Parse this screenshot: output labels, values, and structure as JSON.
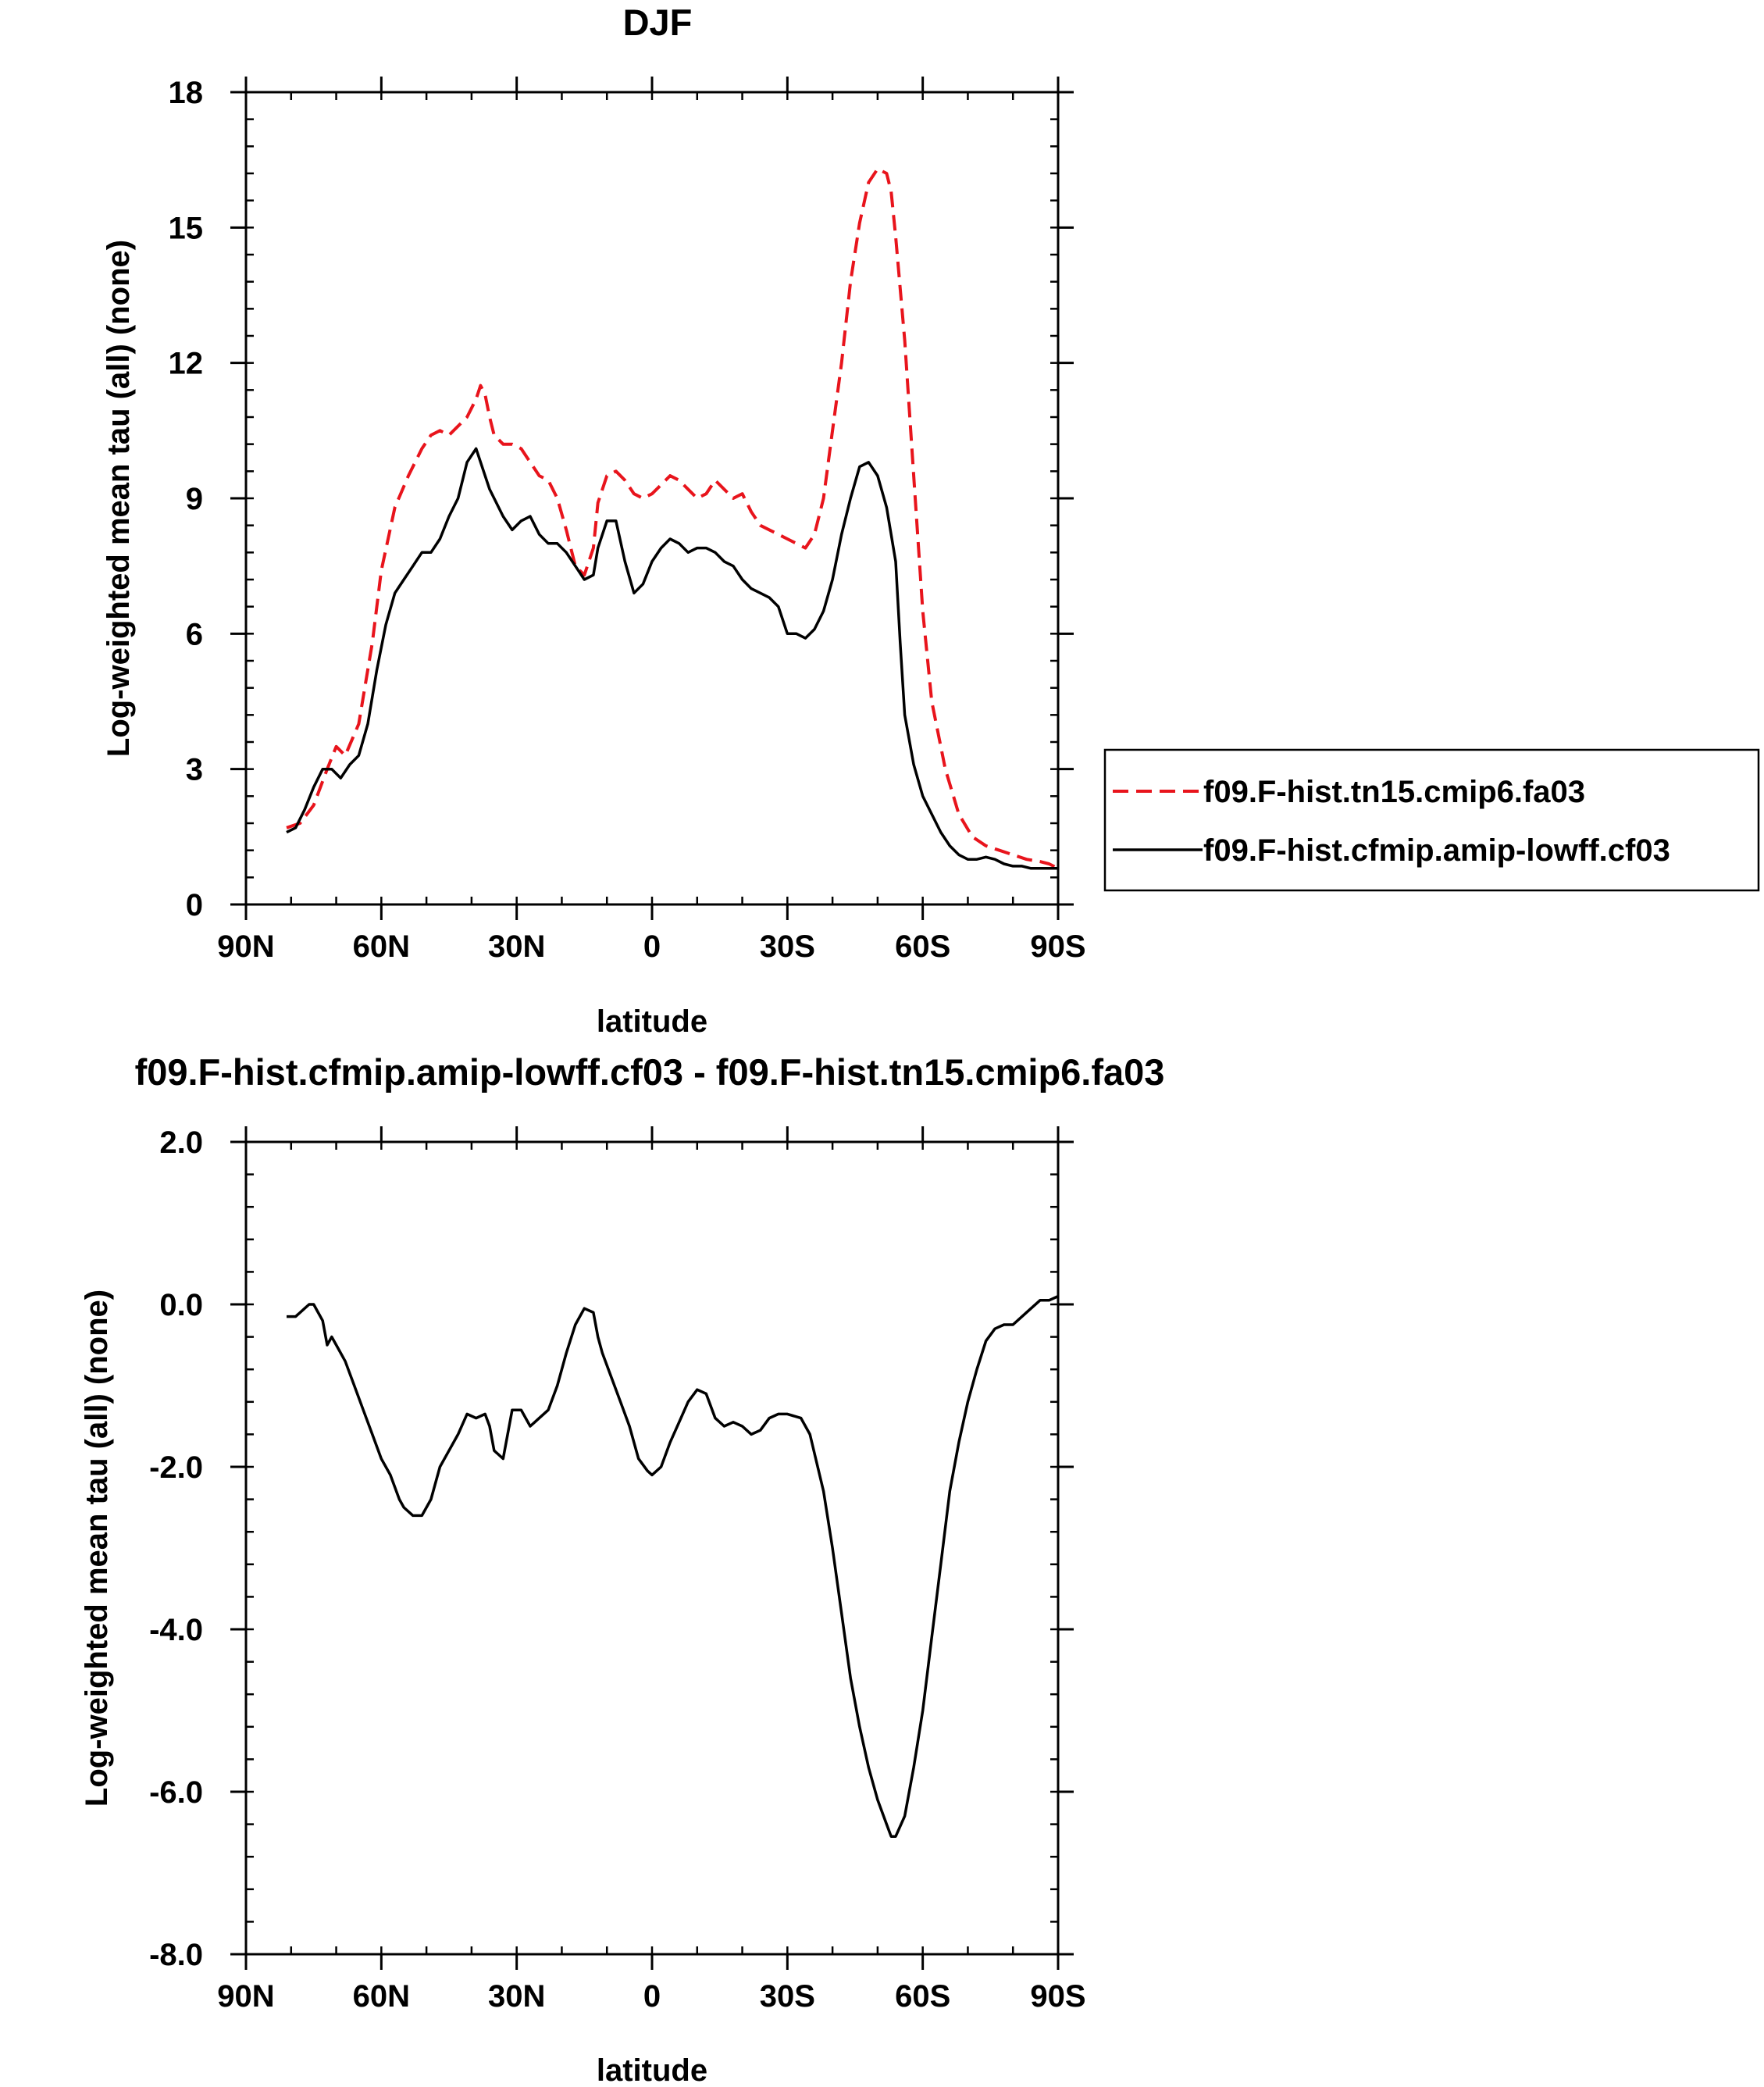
{
  "chart_data": [
    {
      "type": "line",
      "title": "DJF",
      "xlabel": "latitude",
      "ylabel": "Log-weighted mean tau (all) (none)",
      "xlim": [
        90,
        -90
      ],
      "ylim": [
        0,
        18
      ],
      "xticks": [
        90,
        60,
        30,
        0,
        -30,
        -60,
        -90
      ],
      "xtick_labels": [
        "90N",
        "60N",
        "30N",
        "0",
        "30S",
        "60S",
        "90S"
      ],
      "yticks": [
        0,
        3,
        6,
        9,
        12,
        15,
        18
      ],
      "ytick_labels": [
        "0",
        "3",
        "6",
        "9",
        "12",
        "15",
        "18"
      ],
      "grid": false,
      "legend_position": "right",
      "series": [
        {
          "name": "f09.F-hist.tn15.cmip6.fa03",
          "color": "#e8141c",
          "style": "dashed",
          "x": [
            81,
            78,
            75,
            72,
            70,
            68,
            65,
            62,
            60,
            57,
            54,
            51,
            49,
            47,
            45,
            43,
            41,
            39,
            38,
            37,
            36,
            35,
            33,
            31,
            29,
            27,
            25,
            23,
            21,
            19,
            17,
            15,
            13,
            12,
            10,
            8,
            6,
            4,
            2,
            0,
            -2,
            -4,
            -6,
            -8,
            -10,
            -12,
            -14,
            -16,
            -18,
            -20,
            -22,
            -24,
            -26,
            -28,
            -30,
            -32,
            -34,
            -36,
            -38,
            -40,
            -42,
            -44,
            -46,
            -48,
            -50,
            -52,
            -53,
            -54,
            -56,
            -58,
            -60,
            -62,
            -65,
            -68,
            -71,
            -74,
            -77,
            -80,
            -83,
            -86,
            -88,
            -90
          ],
          "values": [
            1.7,
            1.8,
            2.2,
            3.0,
            3.5,
            3.3,
            4.0,
            5.8,
            7.4,
            8.8,
            9.5,
            10.1,
            10.4,
            10.5,
            10.4,
            10.6,
            10.8,
            11.2,
            11.5,
            11.3,
            10.8,
            10.4,
            10.2,
            10.2,
            10.1,
            9.8,
            9.5,
            9.4,
            9.0,
            8.3,
            7.5,
            7.3,
            7.9,
            8.9,
            9.5,
            9.6,
            9.4,
            9.1,
            9.0,
            9.1,
            9.3,
            9.5,
            9.4,
            9.2,
            9.0,
            9.1,
            9.4,
            9.2,
            9.0,
            9.1,
            8.7,
            8.4,
            8.3,
            8.2,
            8.1,
            8.0,
            7.9,
            8.2,
            9.0,
            10.5,
            12.0,
            13.8,
            15.1,
            16.0,
            16.3,
            16.2,
            15.8,
            14.8,
            12.5,
            9.5,
            6.5,
            4.5,
            3.0,
            2.0,
            1.5,
            1.3,
            1.2,
            1.1,
            1.0,
            0.95,
            0.9,
            0.8
          ]
        },
        {
          "name": "f09.F-hist.cfmip.amip-lowff.cf03",
          "color": "#000000",
          "style": "solid",
          "x": [
            81,
            79,
            77,
            75,
            73,
            71,
            69,
            67,
            65,
            63,
            61,
            59,
            57,
            55,
            53,
            51,
            49,
            47,
            45,
            43,
            41,
            39,
            37,
            36,
            35,
            33,
            31,
            29,
            27,
            25,
            23,
            21,
            19,
            17,
            15,
            13,
            12,
            10,
            8,
            6,
            4,
            2,
            0,
            -2,
            -4,
            -6,
            -8,
            -10,
            -12,
            -14,
            -16,
            -18,
            -20,
            -22,
            -24,
            -26,
            -28,
            -30,
            -32,
            -34,
            -36,
            -38,
            -40,
            -42,
            -44,
            -46,
            -48,
            -50,
            -52,
            -54,
            -55,
            -56,
            -58,
            -60,
            -62,
            -64,
            -66,
            -68,
            -70,
            -72,
            -74,
            -76,
            -78,
            -80,
            -82,
            -84,
            -86,
            -88,
            -90
          ],
          "values": [
            1.6,
            1.7,
            2.1,
            2.6,
            3.0,
            3.0,
            2.8,
            3.1,
            3.3,
            4.0,
            5.2,
            6.2,
            6.9,
            7.2,
            7.5,
            7.8,
            7.8,
            8.1,
            8.6,
            9.0,
            9.8,
            10.1,
            9.5,
            9.2,
            9.0,
            8.6,
            8.3,
            8.5,
            8.6,
            8.2,
            8.0,
            8.0,
            7.8,
            7.5,
            7.2,
            7.3,
            7.9,
            8.5,
            8.5,
            7.6,
            6.9,
            7.1,
            7.6,
            7.9,
            8.1,
            8.0,
            7.8,
            7.9,
            7.9,
            7.8,
            7.6,
            7.5,
            7.2,
            7.0,
            6.9,
            6.8,
            6.6,
            6.0,
            6.0,
            5.9,
            6.1,
            6.5,
            7.2,
            8.2,
            9.0,
            9.7,
            9.8,
            9.5,
            8.8,
            7.6,
            5.8,
            4.2,
            3.1,
            2.4,
            2.0,
            1.6,
            1.3,
            1.1,
            1.0,
            1.0,
            1.05,
            1.0,
            0.9,
            0.85,
            0.85,
            0.8,
            0.8,
            0.8,
            0.8
          ]
        }
      ]
    },
    {
      "type": "line",
      "title": "f09.F-hist.cfmip.amip-lowff.cf03 - f09.F-hist.tn15.cmip6.fa03",
      "xlabel": "latitude",
      "ylabel": "Log-weighted mean tau (all) (none)",
      "xlim": [
        90,
        -90
      ],
      "ylim": [
        -8,
        2
      ],
      "xticks": [
        90,
        60,
        30,
        0,
        -30,
        -60,
        -90
      ],
      "xtick_labels": [
        "90N",
        "60N",
        "30N",
        "0",
        "30S",
        "60S",
        "90S"
      ],
      "yticks": [
        -8,
        -6,
        -4,
        -2,
        0,
        2
      ],
      "ytick_labels": [
        "-8.0",
        "-6.0",
        "-4.0",
        "-2.0",
        "0.0",
        "2.0"
      ],
      "grid": false,
      "series": [
        {
          "color": "#000000",
          "style": "solid",
          "x": [
            81,
            79,
            77,
            76,
            75,
            74,
            73,
            72,
            71,
            70,
            68,
            66,
            64,
            62,
            60,
            58,
            56,
            55,
            53,
            51,
            49,
            47,
            45,
            43,
            41,
            39,
            37,
            36,
            35,
            33,
            31,
            29,
            28,
            27,
            26,
            25,
            23,
            21,
            19,
            17,
            15,
            13,
            12,
            11,
            9,
            7,
            5,
            3,
            1,
            0,
            -2,
            -4,
            -6,
            -8,
            -10,
            -12,
            -14,
            -16,
            -18,
            -20,
            -22,
            -24,
            -26,
            -28,
            -30,
            -33,
            -35,
            -38,
            -40,
            -42,
            -44,
            -46,
            -48,
            -50,
            -52,
            -53,
            -54,
            -56,
            -58,
            -60,
            -62,
            -64,
            -66,
            -68,
            -70,
            -72,
            -74,
            -76,
            -78,
            -80,
            -82,
            -84,
            -86,
            -88,
            -90
          ],
          "values": [
            -0.15,
            -0.15,
            -0.05,
            0.0,
            0.0,
            -0.1,
            -0.2,
            -0.5,
            -0.4,
            -0.5,
            -0.7,
            -1.0,
            -1.3,
            -1.6,
            -1.9,
            -2.1,
            -2.4,
            -2.5,
            -2.6,
            -2.6,
            -2.4,
            -2.0,
            -1.8,
            -1.6,
            -1.35,
            -1.4,
            -1.35,
            -1.5,
            -1.8,
            -1.9,
            -1.3,
            -1.3,
            -1.4,
            -1.5,
            -1.45,
            -1.4,
            -1.3,
            -1.0,
            -0.6,
            -0.25,
            -0.05,
            -0.1,
            -0.4,
            -0.6,
            -0.9,
            -1.2,
            -1.5,
            -1.9,
            -2.05,
            -2.1,
            -2.0,
            -1.7,
            -1.45,
            -1.2,
            -1.05,
            -1.1,
            -1.4,
            -1.5,
            -1.45,
            -1.5,
            -1.6,
            -1.55,
            -1.4,
            -1.35,
            -1.35,
            -1.4,
            -1.6,
            -2.3,
            -3.0,
            -3.8,
            -4.6,
            -5.2,
            -5.7,
            -6.1,
            -6.4,
            -6.55,
            -6.55,
            -6.3,
            -5.7,
            -5.0,
            -4.1,
            -3.2,
            -2.3,
            -1.7,
            -1.2,
            -0.8,
            -0.45,
            -0.3,
            -0.25,
            -0.25,
            -0.15,
            -0.05,
            0.05,
            0.05,
            0.1
          ]
        }
      ]
    }
  ]
}
